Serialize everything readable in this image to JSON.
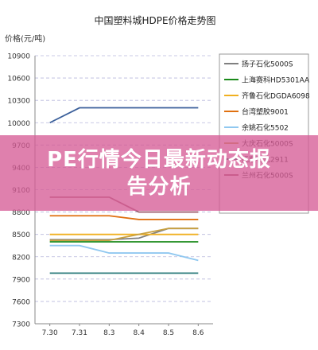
{
  "chart_data": {
    "type": "line",
    "title": "中国塑料城HDPE价格走势图",
    "ylabel": "价格(元/吨)",
    "xlabel": "",
    "categories": [
      "7.30",
      "7.31",
      "8.3",
      "8.4",
      "8.5",
      "8.6"
    ],
    "ylim": [
      7300,
      10900
    ],
    "yticks": [
      7300,
      7600,
      7900,
      8200,
      8500,
      8800,
      9100,
      9400,
      9700,
      10000,
      10300,
      10600,
      10900
    ],
    "grid": true,
    "legend_position": "right",
    "series": [
      {
        "name": "扬子石化5000S",
        "color": "#808080",
        "values": [
          8430,
          8430,
          8430,
          8450,
          8580,
          8580
        ]
      },
      {
        "name": "上海赛科HD5301AA",
        "color": "#1a8a1a",
        "values": [
          8400,
          8400,
          8400,
          8400,
          8400,
          8400
        ]
      },
      {
        "name": "齐鲁石化DGDA6098",
        "color": "#f0b020",
        "values": [
          8500,
          8500,
          8500,
          8500,
          8500,
          8500
        ]
      },
      {
        "name": "台湾塑胶9001",
        "color": "#e07010",
        "values": [
          8750,
          8750,
          8750,
          8700,
          8700,
          8700
        ]
      },
      {
        "name": "余姚石化5502",
        "color": "#90c8f0",
        "values": [
          8350,
          8350,
          8250,
          8250,
          8250,
          8150
        ]
      },
      {
        "name": "大庆石化5000S",
        "color": "#c8a040",
        "values": [
          8420,
          8420,
          8420,
          8500,
          8580,
          8580
        ]
      },
      {
        "name": "抚顺石化2911",
        "color": "#2e7d7d",
        "values": [
          7980,
          7980,
          7980,
          7980,
          7980,
          7980
        ]
      },
      {
        "name": "",
        "color": "#3a5f9a",
        "values": [
          10000,
          10200,
          10200,
          10200,
          10200,
          10200
        ]
      },
      {
        "name": "兰州石化5000S",
        "color": "#a06070",
        "values": [
          9000,
          9000,
          9000,
          8800,
          8800,
          8800
        ]
      }
    ]
  },
  "banner": {
    "line1": "PE行情今日最新动态报",
    "line2": "告分析"
  }
}
